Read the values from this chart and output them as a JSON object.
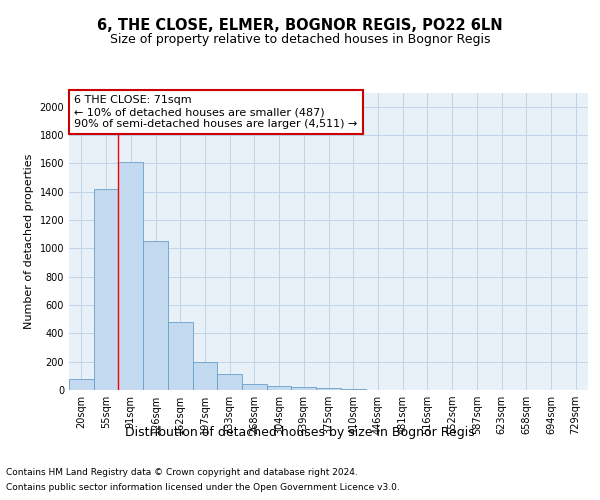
{
  "title": "6, THE CLOSE, ELMER, BOGNOR REGIS, PO22 6LN",
  "subtitle": "Size of property relative to detached houses in Bognor Regis",
  "xlabel": "Distribution of detached houses by size in Bognor Regis",
  "ylabel": "Number of detached properties",
  "bar_labels": [
    "20sqm",
    "55sqm",
    "91sqm",
    "126sqm",
    "162sqm",
    "197sqm",
    "233sqm",
    "268sqm",
    "304sqm",
    "339sqm",
    "375sqm",
    "410sqm",
    "446sqm",
    "481sqm",
    "516sqm",
    "552sqm",
    "587sqm",
    "623sqm",
    "658sqm",
    "694sqm",
    "729sqm"
  ],
  "bar_values": [
    80,
    1420,
    1610,
    1050,
    480,
    200,
    110,
    40,
    30,
    20,
    15,
    10,
    0,
    0,
    0,
    0,
    0,
    0,
    0,
    0,
    0
  ],
  "bar_color": "#c2d9f0",
  "bar_edge_color": "#6a9fc8",
  "red_line_x": 1.5,
  "annotation_text": "6 THE CLOSE: 71sqm\n← 10% of detached houses are smaller (487)\n90% of semi-detached houses are larger (4,511) →",
  "annotation_box_color": "#ffffff",
  "annotation_box_edge": "#cc0000",
  "ylim": [
    0,
    2100
  ],
  "yticks": [
    0,
    200,
    400,
    600,
    800,
    1000,
    1200,
    1400,
    1600,
    1800,
    2000
  ],
  "grid_color": "#c0d4e8",
  "plot_bg_color": "#e8f0f8",
  "fig_bg_color": "#ffffff",
  "footer_line1": "Contains HM Land Registry data © Crown copyright and database right 2024.",
  "footer_line2": "Contains public sector information licensed under the Open Government Licence v3.0.",
  "title_fontsize": 10.5,
  "subtitle_fontsize": 9,
  "xlabel_fontsize": 9,
  "ylabel_fontsize": 8,
  "tick_fontsize": 7,
  "annotation_fontsize": 8,
  "footer_fontsize": 6.5
}
